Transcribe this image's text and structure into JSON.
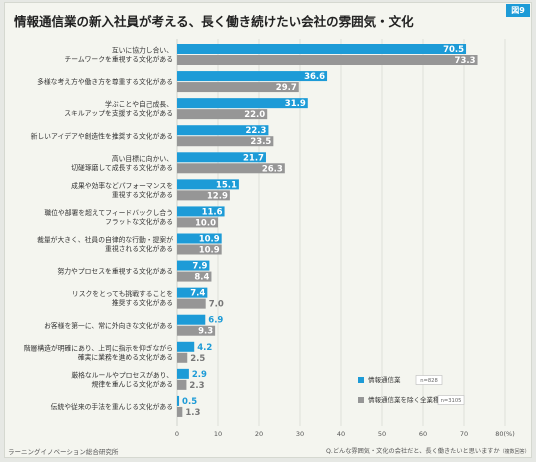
{
  "title": "情報通信業の新入社員が考える、長く働き続けたい会社の雰囲気・文化",
  "logo_text": "図9",
  "source": "ラーニングイノベーション総合研究所",
  "question": "Q.どんな雰囲気・文化の会社だと、長く働きたいと思いますか",
  "question_note": "（複数回答）",
  "colors": {
    "series1": "#1d9bd7",
    "series2": "#969696",
    "grid": "#cfd3cc"
  },
  "chart_data": {
    "type": "bar",
    "orientation": "horizontal",
    "categories": [
      [
        "互いに協力し合い、",
        "チームワークを重視する文化がある"
      ],
      [
        "多様な考え方や働き方を尊重する文化がある"
      ],
      [
        "学ぶことや自己成長、",
        "スキルアップを支援する文化がある"
      ],
      [
        "新しいアイデアや創造性を推奨する文化がある"
      ],
      [
        "高い目標に向かい、",
        "切磋琢磨して成長する文化がある"
      ],
      [
        "成果や効率などパフォーマンスを",
        "重視する文化がある"
      ],
      [
        "職位や部署を超えてフィードバックし合う",
        "フラットな文化がある"
      ],
      [
        "裁量が大きく、社員の自律的な行動・提案が",
        "重視される文化がある"
      ],
      [
        "努力やプロセスを重視する文化がある"
      ],
      [
        "リスクをとっても挑戦することを",
        "推奨する文化がある"
      ],
      [
        "お客様を第一に、常に外向きな文化がある"
      ],
      [
        "階層構造が明確にあり、上司に指示を仰ぎながら",
        "確実に業務を進める文化がある"
      ],
      [
        "厳格なルールやプロセスがあり、",
        "規律を重んじる文化がある"
      ],
      [
        "伝統や従来の手法を重んじる文化がある"
      ]
    ],
    "series": [
      {
        "name": "情報通信業",
        "n": "n=828",
        "values": [
          70.5,
          36.6,
          31.9,
          22.3,
          21.7,
          15.1,
          11.6,
          10.9,
          7.9,
          7.4,
          6.9,
          4.2,
          2.9,
          0.5
        ]
      },
      {
        "name": "情報通信業を除く全業種",
        "n": "n=3105",
        "values": [
          73.3,
          29.7,
          22.0,
          23.5,
          26.3,
          12.9,
          10.0,
          10.9,
          8.4,
          7.0,
          9.3,
          2.5,
          2.3,
          1.3
        ]
      }
    ],
    "xlim": [
      0,
      80
    ],
    "xticks": [
      "0",
      "10",
      "20",
      "30",
      "40",
      "50",
      "60",
      "70",
      "80(%)"
    ],
    "grid": true,
    "legend_position": "bottom-right"
  }
}
